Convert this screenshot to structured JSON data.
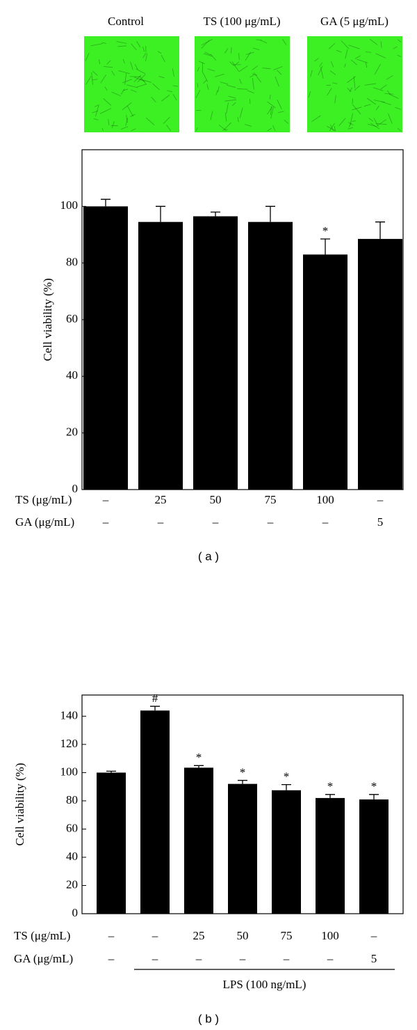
{
  "image_labels": [
    "Control",
    "TS (100 μg/mL)",
    "GA (5 μg/mL)"
  ],
  "chart_data": [
    {
      "type": "bar",
      "panel_label": "( a )",
      "y_label": "Cell viability (%)",
      "color": "#000000",
      "values": [
        100,
        94.5,
        96.5,
        94.5,
        83,
        88.5
      ],
      "errors": [
        2.5,
        5.5,
        1.5,
        5.5,
        5.5,
        6
      ],
      "annotations": [
        null,
        null,
        null,
        null,
        "*",
        null
      ],
      "ylim": [
        0,
        120
      ],
      "yticks": [
        0,
        20,
        40,
        60,
        80,
        100
      ],
      "row_labels": [
        {
          "label": "TS (μg/mL)",
          "values": [
            "–",
            "25",
            "50",
            "75",
            "100",
            "–"
          ]
        },
        {
          "label": "GA (μg/mL)",
          "values": [
            "–",
            "–",
            "–",
            "–",
            "–",
            "5"
          ]
        }
      ]
    },
    {
      "type": "bar",
      "panel_label": "( b )",
      "y_label": "Cell viability (%)",
      "color": "#000000",
      "values": [
        100,
        144,
        103.5,
        92,
        87.5,
        82,
        81
      ],
      "errors": [
        1,
        3,
        1.5,
        2.5,
        4,
        2.5,
        3.5
      ],
      "annotations": [
        null,
        "#",
        "*",
        "*",
        "*",
        "*",
        "*"
      ],
      "ylim": [
        0,
        155
      ],
      "yticks": [
        0,
        20,
        40,
        60,
        80,
        100,
        120,
        140
      ],
      "row_labels": [
        {
          "label": "TS (μg/mL)",
          "values": [
            "–",
            "–",
            "25",
            "50",
            "75",
            "100",
            "–"
          ]
        },
        {
          "label": "GA (μg/mL)",
          "values": [
            "–",
            "–",
            "–",
            "–",
            "–",
            "–",
            "5"
          ]
        }
      ],
      "group_label": "LPS (100 ng/mL)"
    }
  ]
}
